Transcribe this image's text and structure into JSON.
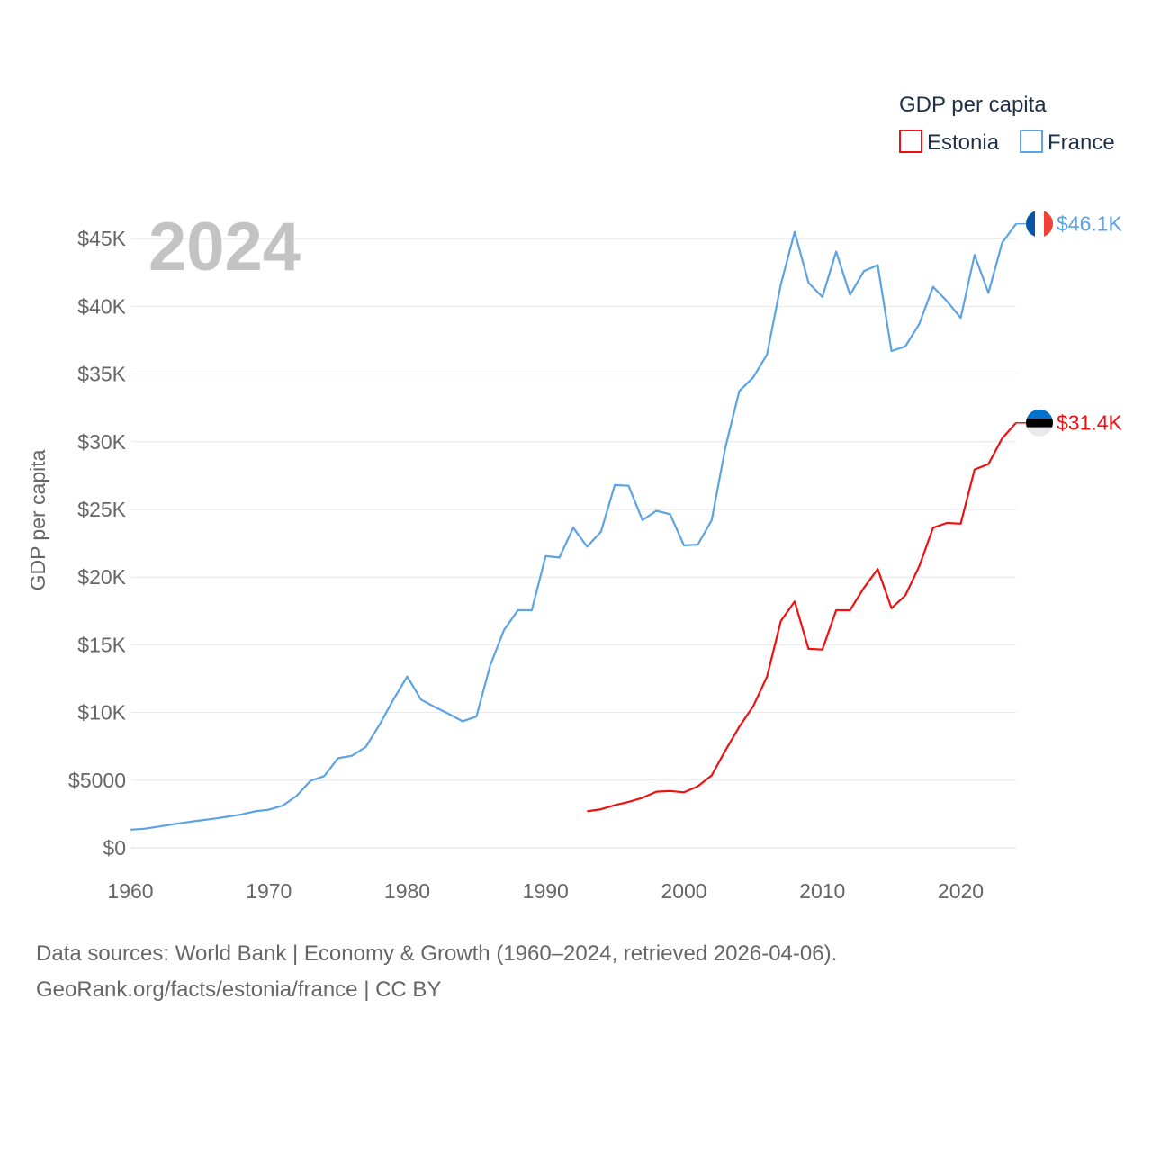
{
  "chart_data": {
    "type": "line",
    "title": "GDP per capita",
    "ylabel": "GDP per capita",
    "xlabel": "",
    "current_year": "2024",
    "xlim": [
      1960,
      2024
    ],
    "ylim": [
      0,
      47000
    ],
    "x_ticks": [
      1960,
      1970,
      1980,
      1990,
      2000,
      2010,
      2020
    ],
    "y_ticks": [
      {
        "value": 0,
        "label": "$0"
      },
      {
        "value": 5000,
        "label": "$5000"
      },
      {
        "value": 10000,
        "label": "$10K"
      },
      {
        "value": 15000,
        "label": "$15K"
      },
      {
        "value": 20000,
        "label": "$20K"
      },
      {
        "value": 25000,
        "label": "$25K"
      },
      {
        "value": 30000,
        "label": "$30K"
      },
      {
        "value": 35000,
        "label": "$35K"
      },
      {
        "value": 40000,
        "label": "$40K"
      },
      {
        "value": 45000,
        "label": "$45K"
      }
    ],
    "series": [
      {
        "name": "Estonia",
        "color": "#ee1111",
        "end_label": "$31.4K",
        "flag": "estonia-flag",
        "flag_colors": [
          "#0072ce",
          "#000000",
          "#ffffff"
        ],
        "x": [
          1993,
          1994,
          1995,
          1996,
          1997,
          1998,
          1999,
          2000,
          2001,
          2002,
          2003,
          2004,
          2005,
          2006,
          2007,
          2008,
          2009,
          2010,
          2011,
          2012,
          2013,
          2014,
          2015,
          2016,
          2017,
          2018,
          2019,
          2020,
          2021,
          2022,
          2023,
          2024
        ],
        "values": [
          2700,
          2850,
          3150,
          3400,
          3700,
          4150,
          4200,
          4100,
          4550,
          5350,
          7200,
          8950,
          10450,
          12650,
          16750,
          18200,
          14700,
          14650,
          17550,
          17550,
          19200,
          20600,
          17700,
          18650,
          20800,
          23650,
          24000,
          23950,
          27950,
          28350,
          30250,
          31400
        ]
      },
      {
        "name": "France",
        "color": "#5ba3e4",
        "end_label": "$46.1K",
        "flag": "france-flag",
        "flag_colors": [
          "#0055a4",
          "#ffffff",
          "#ef4135"
        ],
        "x": [
          1960,
          1961,
          1962,
          1963,
          1964,
          1965,
          1966,
          1967,
          1968,
          1969,
          1970,
          1971,
          1972,
          1973,
          1974,
          1975,
          1976,
          1977,
          1978,
          1979,
          1980,
          1981,
          1982,
          1983,
          1984,
          1985,
          1986,
          1987,
          1988,
          1989,
          1990,
          1991,
          1992,
          1993,
          1994,
          1995,
          1996,
          1997,
          1998,
          1999,
          2000,
          2001,
          2002,
          2003,
          2004,
          2005,
          2006,
          2007,
          2008,
          2009,
          2010,
          2011,
          2012,
          2013,
          2014,
          2015,
          2016,
          2017,
          2018,
          2019,
          2020,
          2021,
          2022,
          2023,
          2024
        ],
        "values": [
          1340,
          1410,
          1570,
          1730,
          1880,
          2020,
          2150,
          2300,
          2470,
          2700,
          2820,
          3120,
          3830,
          4950,
          5300,
          6620,
          6800,
          7450,
          9100,
          10950,
          12650,
          10950,
          10400,
          9900,
          9350,
          9700,
          13500,
          16100,
          17550,
          17550,
          21550,
          21450,
          23650,
          22250,
          23350,
          26800,
          26750,
          24200,
          24900,
          24650,
          22350,
          22400,
          24200,
          29600,
          33750,
          34750,
          36450,
          41600,
          45500,
          41750,
          40700,
          44050,
          40850,
          42600,
          43050,
          36700,
          37050,
          38700,
          41450,
          40400,
          39150,
          43800,
          41000,
          44700,
          46100
        ]
      }
    ]
  },
  "legend": {
    "title": "GDP per capita",
    "items": [
      "Estonia",
      "France"
    ]
  },
  "source": {
    "line1": "Data sources: World Bank | Economy & Growth (1960–2024, retrieved 2026-04-06).",
    "line2": "GeoRank.org/facts/estonia/france | CC BY"
  }
}
